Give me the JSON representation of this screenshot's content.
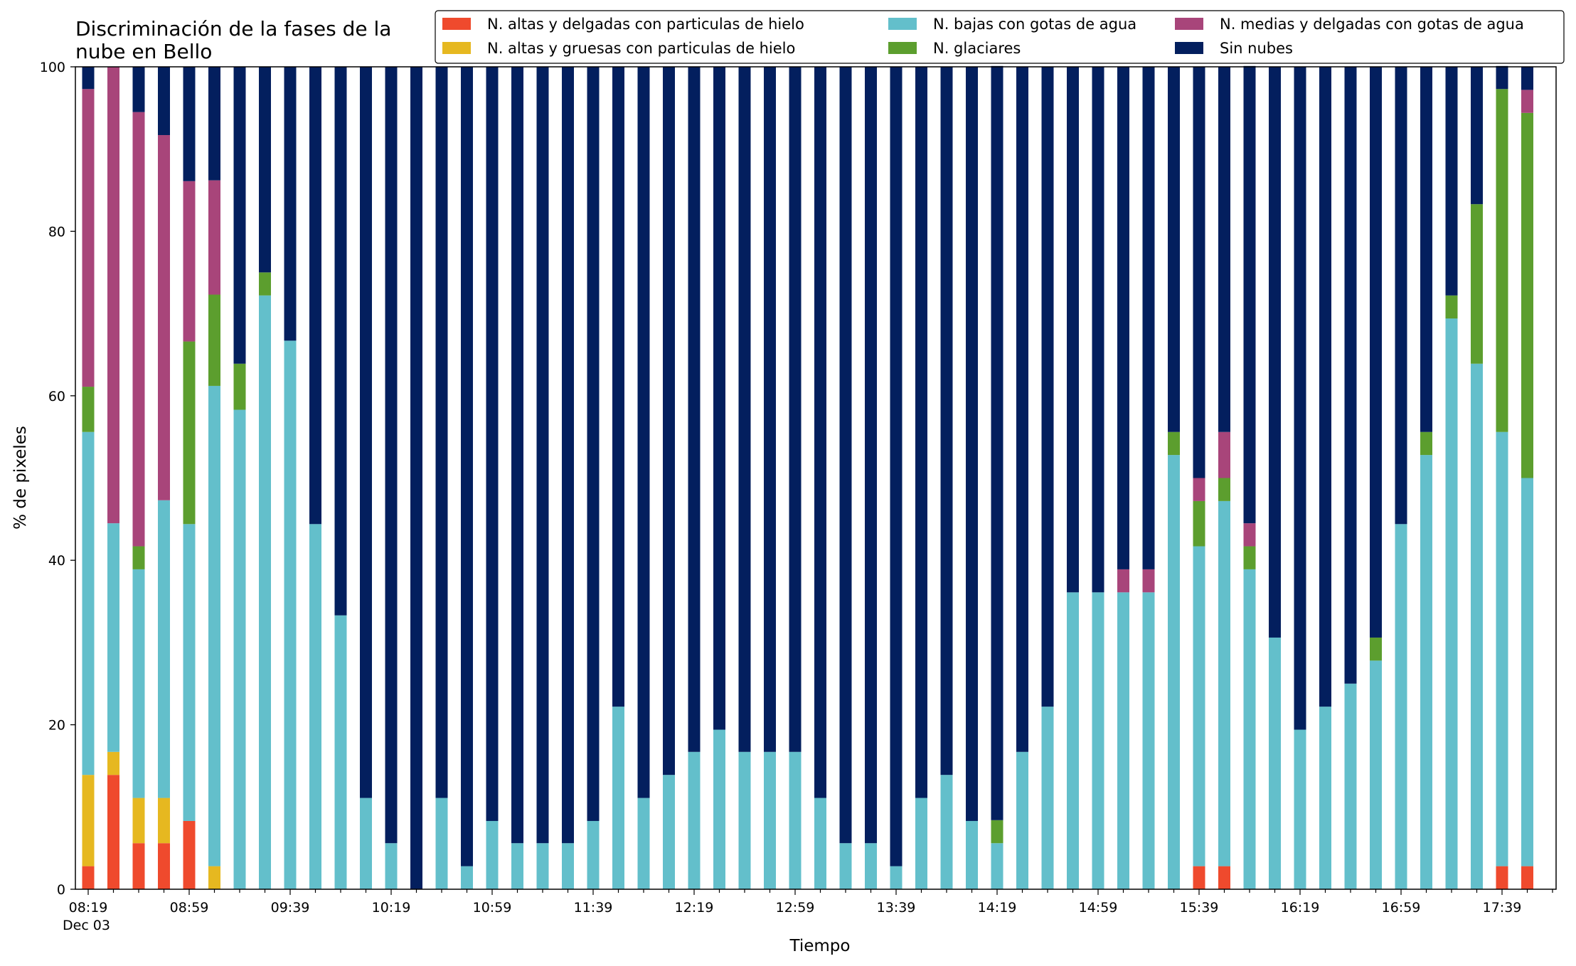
{
  "chart_data": {
    "type": "bar",
    "stacked": true,
    "title": "Discriminación de la fases de la\nnube en Bello",
    "xlabel": "Tiempo",
    "ylabel": "% de pixeles",
    "ylim": [
      0,
      100
    ],
    "yticks": [
      0,
      20,
      40,
      60,
      80,
      100
    ],
    "grid": false,
    "legend_position": "top-right",
    "legend_columns": 3,
    "xtick_labels": [
      "08:19",
      "08:59",
      "09:39",
      "10:19",
      "10:59",
      "11:39",
      "12:19",
      "12:59",
      "13:39",
      "14:19",
      "14:59",
      "15:39",
      "16:19",
      "16:59",
      "17:39"
    ],
    "xtick_sublabel": "Dec 03",
    "categories": [
      "08:19",
      "08:29",
      "08:39",
      "08:49",
      "08:59",
      "09:09",
      "09:19",
      "09:29",
      "09:39",
      "09:49",
      "09:59",
      "10:09",
      "10:19",
      "10:29",
      "10:39",
      "10:49",
      "10:59",
      "11:09",
      "11:19",
      "11:29",
      "11:39",
      "11:49",
      "11:59",
      "12:09",
      "12:19",
      "12:29",
      "12:39",
      "12:49",
      "12:59",
      "13:09",
      "13:19",
      "13:29",
      "13:39",
      "13:49",
      "13:59",
      "14:09",
      "14:19",
      "14:29",
      "14:39",
      "14:49",
      "14:59",
      "15:09",
      "15:19",
      "15:29",
      "15:39",
      "15:49",
      "15:59",
      "16:09",
      "16:19",
      "16:29",
      "16:39",
      "16:49",
      "16:59",
      "17:09",
      "17:19",
      "17:29",
      "17:39",
      "17:49"
    ],
    "series": [
      {
        "name": "N. altas y delgadas con particulas de hielo",
        "color": "#ef4a2d",
        "values": [
          2.8,
          13.9,
          5.6,
          5.6,
          8.3,
          0,
          0,
          0,
          0,
          0,
          0,
          0,
          0,
          0,
          0,
          0,
          0,
          0,
          0,
          0,
          0,
          0,
          0,
          0,
          0,
          0,
          0,
          0,
          0,
          0,
          0,
          0,
          0,
          0,
          0,
          0,
          0,
          0,
          0,
          0,
          0,
          0,
          0,
          0,
          2.8,
          2.8,
          0,
          0,
          0,
          0,
          0,
          0,
          0,
          0,
          0,
          0,
          2.8,
          2.8
        ]
      },
      {
        "name": "N. altas y gruesas con particulas de hielo",
        "color": "#e6b820",
        "values": [
          11.1,
          2.8,
          5.5,
          5.5,
          0,
          2.8,
          0,
          0,
          0,
          0,
          0,
          0,
          0,
          0,
          0,
          0,
          0,
          0,
          0,
          0,
          0,
          0,
          0,
          0,
          0,
          0,
          0,
          0,
          0,
          0,
          0,
          0,
          0,
          0,
          0,
          0,
          0,
          0,
          0,
          0,
          0,
          0,
          0,
          0,
          0,
          0,
          0,
          0,
          0,
          0,
          0,
          0,
          0,
          0,
          0,
          0,
          0,
          0
        ]
      },
      {
        "name": "N. bajas con gotas de agua",
        "color": "#63bfcb",
        "values": [
          41.7,
          27.8,
          27.8,
          36.2,
          36.1,
          58.4,
          58.3,
          72.2,
          66.7,
          44.4,
          33.3,
          11.1,
          5.6,
          0,
          11.1,
          2.8,
          8.3,
          5.6,
          5.6,
          5.6,
          8.3,
          22.2,
          11.1,
          13.9,
          16.7,
          19.4,
          16.7,
          16.7,
          16.7,
          11.1,
          5.6,
          5.6,
          2.8,
          11.1,
          13.9,
          8.3,
          5.6,
          16.7,
          22.2,
          36.1,
          36.1,
          36.1,
          36.1,
          52.8,
          38.9,
          44.4,
          38.9,
          30.6,
          19.4,
          22.2,
          25.0,
          27.8,
          44.4,
          52.8,
          69.4,
          63.9,
          52.8,
          47.2
        ]
      },
      {
        "name": "N. glaciares",
        "color": "#5c9e2e",
        "values": [
          5.5,
          0,
          2.8,
          0,
          22.2,
          11.1,
          5.6,
          2.8,
          0,
          0,
          0,
          0,
          0,
          0,
          0,
          0,
          0,
          0,
          0,
          0,
          0,
          0,
          0,
          0,
          0,
          0,
          0,
          0,
          0,
          0,
          0,
          0,
          0,
          0,
          0,
          0,
          2.8,
          0,
          0,
          0,
          0,
          0,
          0,
          2.8,
          5.5,
          2.8,
          2.8,
          0,
          0,
          0,
          0,
          2.8,
          0,
          2.8,
          2.8,
          19.4,
          41.7,
          44.4
        ]
      },
      {
        "name": "N. medias y delgadas con gotas de agua",
        "color": "#a8457a",
        "values": [
          36.2,
          55.5,
          52.8,
          44.4,
          19.5,
          13.9,
          0,
          0,
          0,
          0,
          0,
          0,
          0,
          0,
          0,
          0,
          0,
          0,
          0,
          0,
          0,
          0,
          0,
          0,
          0,
          0,
          0,
          0,
          0,
          0,
          0,
          0,
          0,
          0,
          0,
          0,
          0,
          0,
          0,
          0,
          0,
          2.8,
          2.8,
          0,
          2.8,
          5.6,
          2.8,
          0,
          0,
          0,
          0,
          0,
          0,
          0,
          0,
          0,
          0,
          2.8
        ]
      },
      {
        "name": "Sin nubes",
        "color": "#031f5e",
        "values": [
          2.7,
          0,
          5.5,
          8.3,
          13.9,
          13.8,
          36.1,
          25.0,
          33.3,
          55.6,
          66.7,
          88.9,
          94.4,
          100,
          88.9,
          97.2,
          91.7,
          94.4,
          94.4,
          94.4,
          91.7,
          77.8,
          88.9,
          86.1,
          83.3,
          80.6,
          83.3,
          83.3,
          83.3,
          88.9,
          94.4,
          94.4,
          97.2,
          88.9,
          86.1,
          91.7,
          91.7,
          83.3,
          77.8,
          63.9,
          63.9,
          61.1,
          61.1,
          44.4,
          50.0,
          44.4,
          55.6,
          69.4,
          80.6,
          77.8,
          75.0,
          69.4,
          55.6,
          44.4,
          27.8,
          16.7,
          2.8,
          2.8
        ]
      }
    ]
  }
}
